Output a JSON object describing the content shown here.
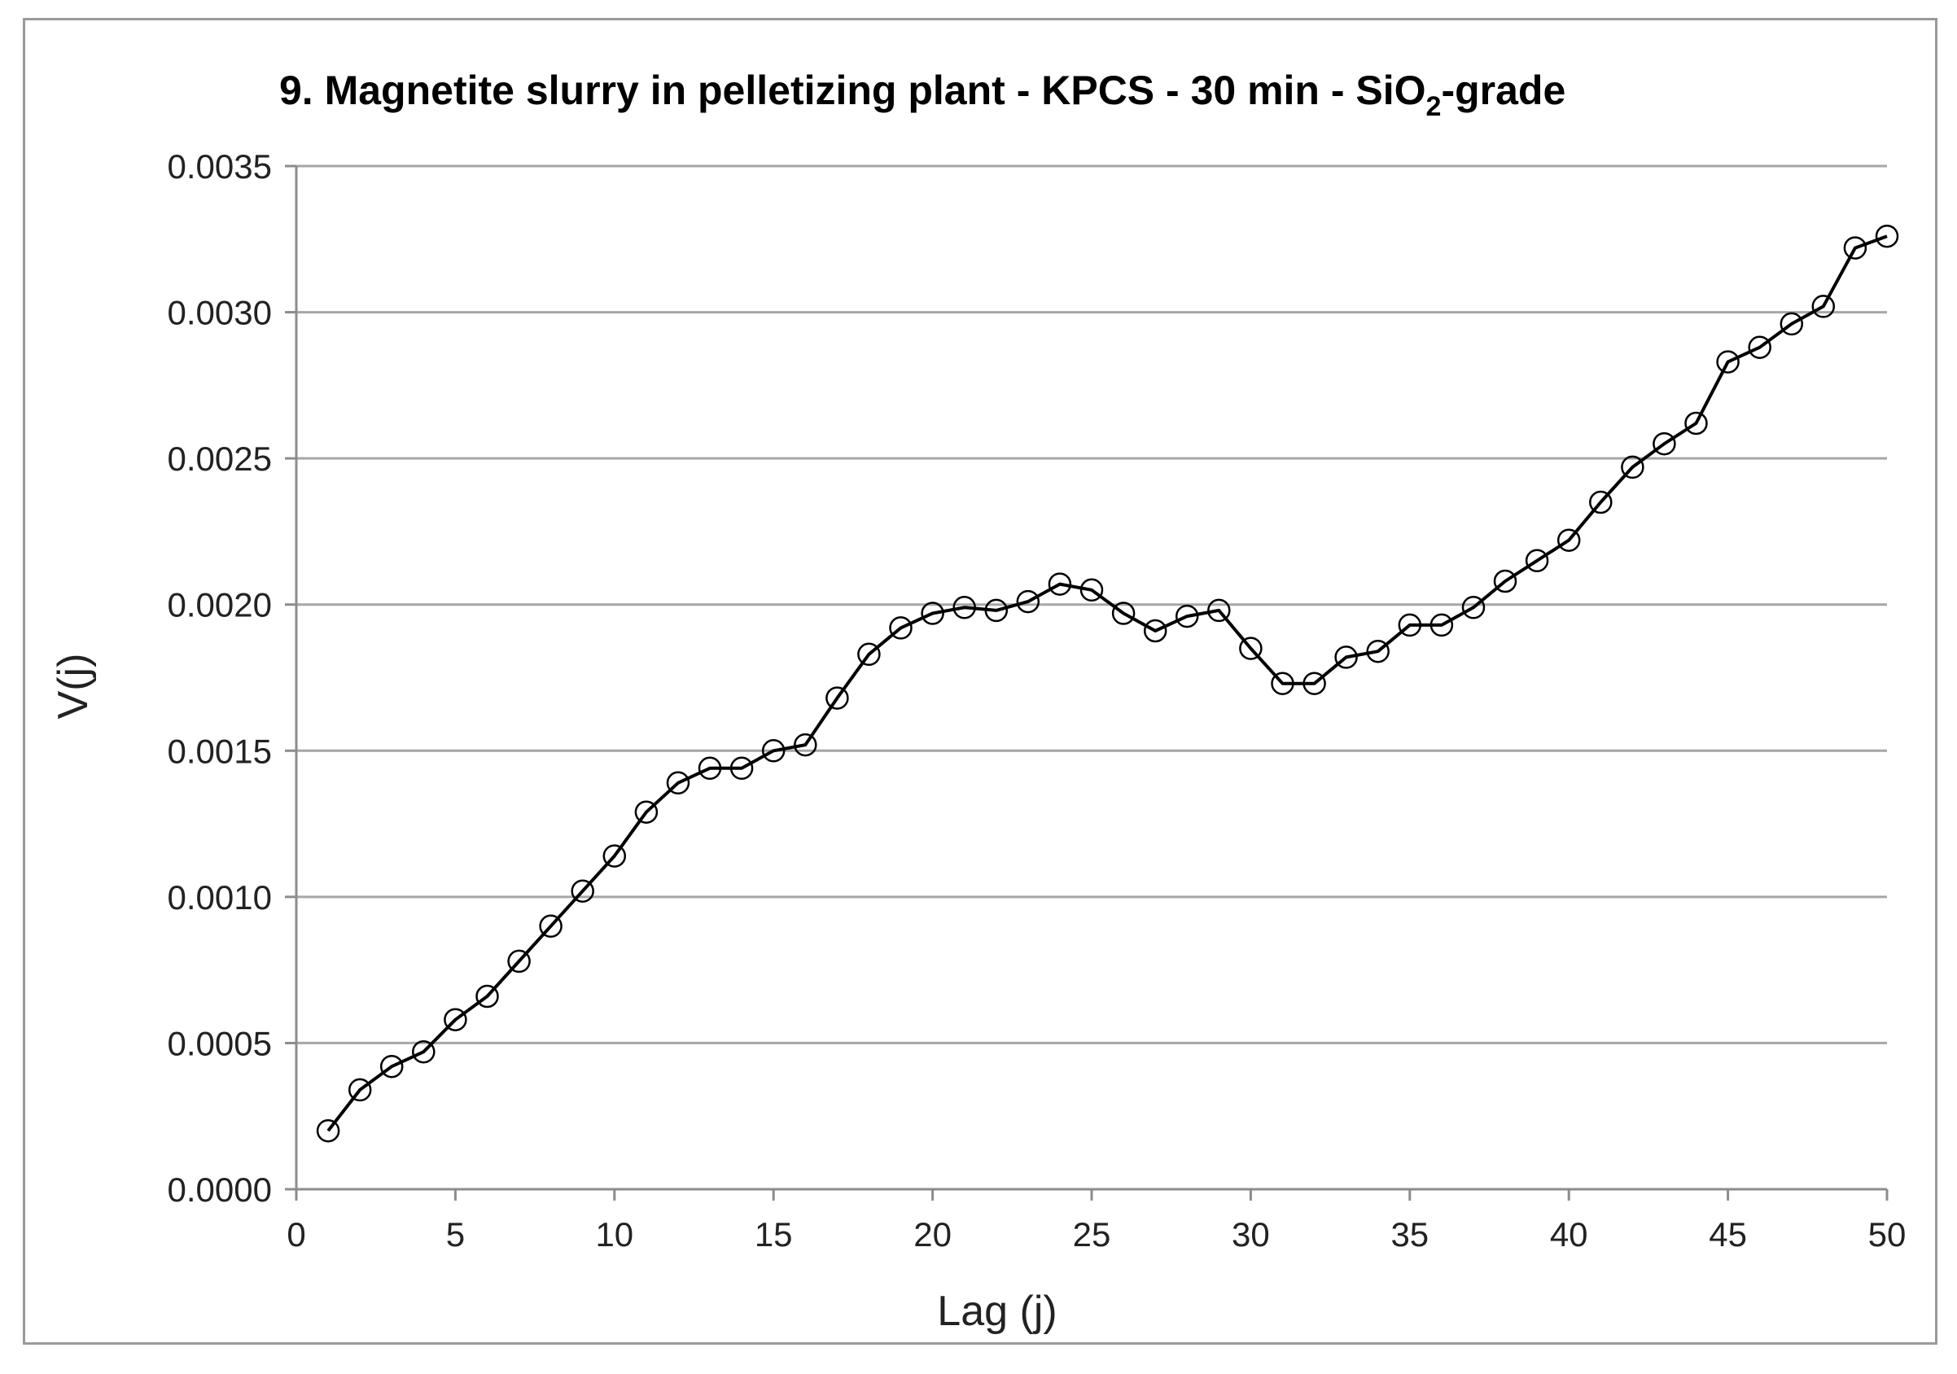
{
  "chart_data": {
    "type": "line",
    "title": {
      "prefix": "9. Magnetite slurry in pelletizing plant - KPCS - 30 min - SiO",
      "subscript": "2",
      "suffix": "-grade"
    },
    "xlabel": "Lag (j)",
    "ylabel": "V(j)",
    "xlim": [
      0,
      50
    ],
    "ylim": [
      0,
      0.0035
    ],
    "x_ticks": [
      "0",
      "5",
      "10",
      "15",
      "20",
      "25",
      "30",
      "35",
      "40",
      "45",
      "50"
    ],
    "y_ticks": [
      "0.0000",
      "0.0005",
      "0.0010",
      "0.0015",
      "0.0020",
      "0.0025",
      "0.0030",
      "0.0035"
    ],
    "grid": "horizontal",
    "marker": "open-circle",
    "line_color": "#000000",
    "grid_color": "#a6a6a6",
    "series": [
      {
        "x": [
          1,
          2,
          3,
          4,
          5,
          6,
          7,
          8,
          9,
          10,
          11,
          12,
          13,
          14,
          15,
          16,
          17,
          18,
          19,
          20,
          21,
          22,
          23,
          24,
          25,
          26,
          27,
          28,
          29,
          30,
          31,
          32,
          33,
          34,
          35,
          36,
          37,
          38,
          39,
          40,
          41,
          42,
          43,
          44,
          45,
          46,
          47,
          48,
          49,
          50
        ],
        "values": [
          0.0002,
          0.00034,
          0.00042,
          0.00047,
          0.00058,
          0.00066,
          0.00078,
          0.0009,
          0.00102,
          0.00114,
          0.00129,
          0.00139,
          0.00144,
          0.00144,
          0.0015,
          0.00152,
          0.00168,
          0.00183,
          0.00192,
          0.00197,
          0.00199,
          0.00198,
          0.00201,
          0.00207,
          0.00205,
          0.00197,
          0.00191,
          0.00196,
          0.00198,
          0.00185,
          0.00173,
          0.00173,
          0.00182,
          0.00184,
          0.00193,
          0.00193,
          0.00199,
          0.00208,
          0.00215,
          0.00222,
          0.00235,
          0.00247,
          0.00255,
          0.00262,
          0.00283,
          0.00288,
          0.00296,
          0.00302,
          0.00322,
          0.00326
        ]
      }
    ]
  }
}
